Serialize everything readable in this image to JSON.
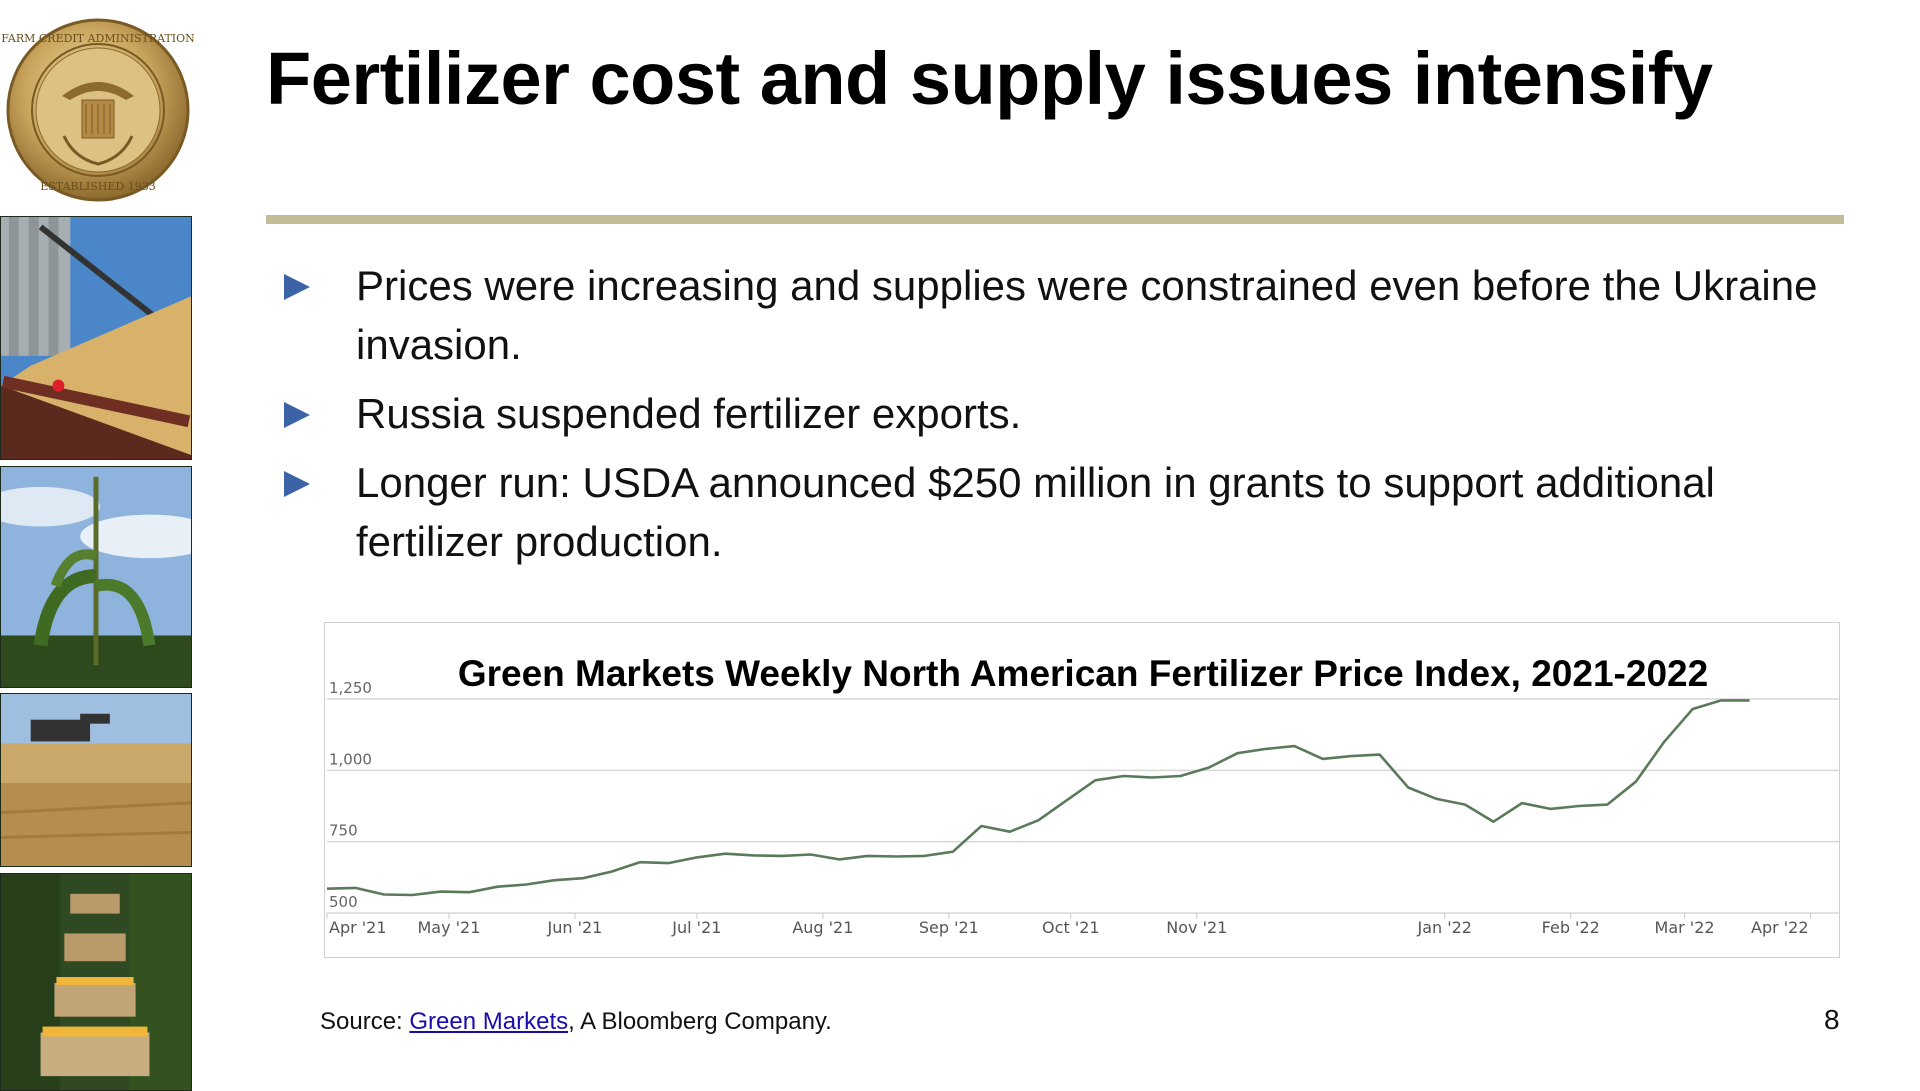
{
  "seal": {
    "text_top": "FARM CREDIT ADMINISTRATION",
    "text_bottom": "ESTABLISHED 1933"
  },
  "slide": {
    "title": "Fertilizer cost and supply issues intensify",
    "page_number": "8"
  },
  "bullets": [
    {
      "text": "Prices were increasing and supplies were constrained even before the Ukraine invasion."
    },
    {
      "text": "Russia suspended fertilizer exports."
    },
    {
      "text": "Longer run: USDA announced $250 million in grants to support additional fertilizer production."
    }
  ],
  "source": {
    "prefix": "Source: ",
    "link_text": "Green Markets",
    "suffix": ", A Bloomberg Company."
  },
  "colors": {
    "accent_rule": "#c4bc97",
    "bullet": "#3b63a6",
    "line": "#5a7a5a",
    "link": "#1a0dab"
  },
  "chart_data": {
    "type": "line",
    "title": "Green Markets Weekly North American Fertilizer Price Index, 2021-2022",
    "xlabel": "",
    "ylabel": "",
    "ylim": [
      500,
      1250
    ],
    "yticks": [
      500,
      750,
      1000,
      1250
    ],
    "ytick_labels": [
      "500",
      "750",
      "1,000",
      "1,250"
    ],
    "x_tick_labels": [
      "Apr '21",
      "May '21",
      "Jun '21",
      "Jul '21",
      "Aug '21",
      "Sep '21",
      "Oct '21",
      "Nov '21",
      "Jan '22",
      "Feb '22",
      "Mar '22",
      "Apr '22"
    ],
    "x_tick_dates": [
      "2021-04-01",
      "2021-05-01",
      "2021-06-01",
      "2021-07-01",
      "2021-08-01",
      "2021-09-01",
      "2021-10-01",
      "2021-11-01",
      "2022-01-01",
      "2022-02-01",
      "2022-03-01",
      "2022-04-01"
    ],
    "x_range": [
      "2021-04-01",
      "2022-04-08"
    ],
    "grid": true,
    "legend": "none",
    "series": [
      {
        "points": [
          [
            "2021-04-01",
            585
          ],
          [
            "2021-04-08",
            588
          ],
          [
            "2021-04-15",
            565
          ],
          [
            "2021-04-22",
            563
          ],
          [
            "2021-04-29",
            575
          ],
          [
            "2021-05-06",
            573
          ],
          [
            "2021-05-13",
            592
          ],
          [
            "2021-05-20",
            600
          ],
          [
            "2021-05-27",
            615
          ],
          [
            "2021-06-03",
            622
          ],
          [
            "2021-06-10",
            645
          ],
          [
            "2021-06-17",
            678
          ],
          [
            "2021-06-24",
            675
          ],
          [
            "2021-07-01",
            695
          ],
          [
            "2021-07-08",
            708
          ],
          [
            "2021-07-15",
            702
          ],
          [
            "2021-07-22",
            700
          ],
          [
            "2021-07-29",
            705
          ],
          [
            "2021-08-05",
            688
          ],
          [
            "2021-08-12",
            700
          ],
          [
            "2021-08-19",
            698
          ],
          [
            "2021-08-26",
            700
          ],
          [
            "2021-09-02",
            715
          ],
          [
            "2021-09-09",
            805
          ],
          [
            "2021-09-16",
            785
          ],
          [
            "2021-09-23",
            825
          ],
          [
            "2021-09-30",
            895
          ],
          [
            "2021-10-07",
            965
          ],
          [
            "2021-10-14",
            980
          ],
          [
            "2021-10-21",
            975
          ],
          [
            "2021-10-28",
            980
          ],
          [
            "2021-11-04",
            1010
          ],
          [
            "2021-11-11",
            1060
          ],
          [
            "2021-11-18",
            1075
          ],
          [
            "2021-11-25",
            1085
          ],
          [
            "2021-12-02",
            1040
          ],
          [
            "2021-12-09",
            1050
          ],
          [
            "2021-12-16",
            1055
          ],
          [
            "2021-12-23",
            940
          ],
          [
            "2021-12-30",
            900
          ],
          [
            "2022-01-06",
            880
          ],
          [
            "2022-01-13",
            820
          ],
          [
            "2022-01-20",
            885
          ],
          [
            "2022-01-27",
            865
          ],
          [
            "2022-02-03",
            875
          ],
          [
            "2022-02-10",
            880
          ],
          [
            "2022-02-17",
            960
          ],
          [
            "2022-02-24",
            1100
          ],
          [
            "2022-03-03",
            1215
          ],
          [
            "2022-03-10",
            1245
          ],
          [
            "2022-03-17",
            1245
          ]
        ]
      }
    ]
  }
}
